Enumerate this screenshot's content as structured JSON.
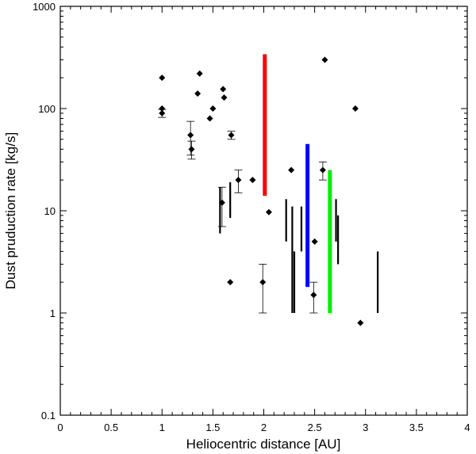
{
  "chart_data": {
    "type": "scatter",
    "title": "",
    "xlabel": "Heliocentric distance [AU]",
    "ylabel": "Dust pruduction rate [kg/s]",
    "xlim": [
      0,
      4
    ],
    "ylim": [
      0.1,
      1000
    ],
    "yscale": "log",
    "grid": false,
    "x_ticks": [
      "0",
      "0.5",
      "1",
      "1.5",
      "2",
      "2.5",
      "3",
      "3.5",
      "4"
    ],
    "y_ticks": [
      "0.1",
      "1",
      "10",
      "100",
      "1000"
    ],
    "points": [
      {
        "x": 1.0,
        "y": 200
      },
      {
        "x": 1.0,
        "y": 100
      },
      {
        "x": 1.0,
        "y": 90,
        "err": [
          82,
          98
        ]
      },
      {
        "x": 1.28,
        "y": 55,
        "err": [
          35,
          75
        ]
      },
      {
        "x": 1.29,
        "y": 40,
        "err": [
          32,
          48
        ]
      },
      {
        "x": 1.35,
        "y": 140
      },
      {
        "x": 1.37,
        "y": 220
      },
      {
        "x": 1.47,
        "y": 80
      },
      {
        "x": 1.5,
        "y": 100
      },
      {
        "x": 1.6,
        "y": 155
      },
      {
        "x": 1.61,
        "y": 128
      },
      {
        "x": 1.59,
        "y": 12,
        "err": [
          7,
          17
        ]
      },
      {
        "x": 1.68,
        "y": 55,
        "err": [
          50,
          60
        ]
      },
      {
        "x": 1.75,
        "y": 20,
        "err": [
          15,
          25
        ]
      },
      {
        "x": 1.67,
        "y": 2
      },
      {
        "x": 1.89,
        "y": 20
      },
      {
        "x": 1.99,
        "y": 2,
        "err": [
          1,
          3
        ]
      },
      {
        "x": 2.05,
        "y": 9.7
      },
      {
        "x": 2.27,
        "y": 25
      },
      {
        "x": 2.5,
        "y": 5
      },
      {
        "x": 2.49,
        "y": 1.5,
        "err": [
          1,
          2
        ]
      },
      {
        "x": 2.58,
        "y": 25,
        "err": [
          20,
          30
        ]
      },
      {
        "x": 2.6,
        "y": 300
      },
      {
        "x": 2.9,
        "y": 100
      },
      {
        "x": 2.95,
        "y": 0.8
      }
    ],
    "ranges": [
      {
        "x": 1.57,
        "low": 6,
        "high": 17
      },
      {
        "x": 1.67,
        "low": 8.5,
        "high": 19
      },
      {
        "x": 2.22,
        "low": 5,
        "high": 13
      },
      {
        "x": 2.28,
        "low": 1,
        "high": 11
      },
      {
        "x": 2.3,
        "low": 1,
        "high": 4
      },
      {
        "x": 2.37,
        "low": 4,
        "high": 11
      },
      {
        "x": 2.71,
        "low": 5,
        "high": 13
      },
      {
        "x": 2.73,
        "low": 3,
        "high": 9
      },
      {
        "x": 3.12,
        "low": 1,
        "high": 4
      }
    ],
    "colored_ranges": [
      {
        "x": 2.01,
        "low": 14,
        "high": 340,
        "color": "#ff0000"
      },
      {
        "x": 2.43,
        "low": 1.8,
        "high": 45,
        "color": "#0000ff"
      },
      {
        "x": 2.65,
        "low": 1,
        "high": 25,
        "color": "#00ee00"
      }
    ]
  }
}
